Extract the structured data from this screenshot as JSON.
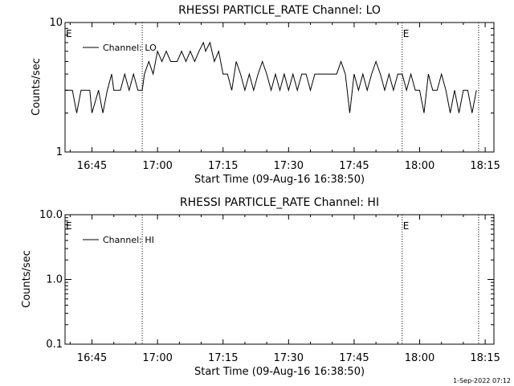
{
  "chart_data": [
    {
      "type": "line",
      "title": "RHESSI PARTICLE_RATE Channel: LO",
      "xlabel": "Start Time (09-Aug-16 16:38:50)",
      "ylabel": "Counts/sec",
      "yscale": "log",
      "ylim": [
        1,
        10
      ],
      "ytick_labels": [
        "1",
        "10"
      ],
      "xlim": [
        "16:38:50",
        "18:17:00"
      ],
      "x_tick_labels": [
        "16:45",
        "17:00",
        "17:15",
        "17:30",
        "17:45",
        "18:00",
        "18:15"
      ],
      "grid": false,
      "legend_position": "top-left",
      "eclipse_markers": [
        "16:38:50",
        "17:56:00"
      ],
      "eclipse_label": "E",
      "vertical_markers": [
        "16:56:30",
        "17:56:00",
        "18:13:30"
      ],
      "series": [
        {
          "name": "Channel: LO",
          "x": [
            "16:38:50",
            "16:40:30",
            "16:41:30",
            "16:42:30",
            "16:43:30",
            "16:44:30",
            "16:45:00",
            "16:46:30",
            "16:47:30",
            "16:48:30",
            "16:49:30",
            "16:50:00",
            "16:51:30",
            "16:52:30",
            "16:53:30",
            "16:54:30",
            "16:55:30",
            "16:56:30",
            "16:57:00",
            "16:58:00",
            "16:59:00",
            "17:00:00",
            "17:01:00",
            "17:02:00",
            "17:03:00",
            "17:04:30",
            "17:05:30",
            "17:06:30",
            "17:07:30",
            "17:08:30",
            "17:09:30",
            "17:10:30",
            "17:11:00",
            "17:12:00",
            "17:13:00",
            "17:14:00",
            "17:15:00",
            "17:16:00",
            "17:17:00",
            "17:18:00",
            "17:19:00",
            "17:20:00",
            "17:21:00",
            "17:22:00",
            "17:23:00",
            "17:24:00",
            "17:25:00",
            "17:26:00",
            "17:27:00",
            "17:28:00",
            "17:29:00",
            "17:30:00",
            "17:31:00",
            "17:32:00",
            "17:33:00",
            "17:34:00",
            "17:35:00",
            "17:36:00",
            "17:37:00",
            "17:38:00",
            "17:39:00",
            "17:40:00",
            "17:41:00",
            "17:42:00",
            "17:43:00",
            "17:44:00",
            "17:45:00",
            "17:46:00",
            "17:47:00",
            "17:48:00",
            "17:49:00",
            "17:50:00",
            "17:51:00",
            "17:52:00",
            "17:53:00",
            "17:54:00",
            "17:55:00",
            "17:56:00",
            "17:57:00",
            "17:58:00",
            "17:59:00",
            "18:00:00",
            "18:01:00",
            "18:02:00",
            "18:03:00",
            "18:04:00",
            "18:05:00",
            "18:06:00",
            "18:07:00",
            "18:08:00",
            "18:09:00",
            "18:10:00",
            "18:11:00",
            "18:12:00",
            "18:13:00"
          ],
          "values": [
            3,
            3,
            2,
            3,
            3,
            3,
            2,
            3,
            2,
            3,
            4,
            3,
            3,
            4,
            3,
            4,
            3,
            3,
            4,
            5,
            4,
            6,
            5,
            6,
            5,
            5,
            6,
            5,
            6,
            5,
            6,
            7,
            6,
            7,
            5,
            6,
            4,
            4,
            3,
            5,
            4,
            3,
            4,
            3,
            4,
            5,
            4,
            3,
            4,
            3,
            4,
            3,
            4,
            3,
            4,
            4,
            3,
            4,
            4,
            4,
            4,
            4,
            4,
            5,
            4,
            2,
            4,
            3,
            4,
            3,
            4,
            5,
            4,
            3,
            4,
            3,
            4,
            4,
            3,
            4,
            3,
            3,
            2,
            4,
            3,
            3,
            4,
            3,
            2,
            3,
            2,
            3,
            3,
            2,
            3
          ]
        }
      ]
    },
    {
      "type": "line",
      "title": "RHESSI PARTICLE_RATE Channel: HI",
      "xlabel": "Start Time (09-Aug-16 16:38:50)",
      "ylabel": "Counts/sec",
      "yscale": "log",
      "ylim": [
        0.1,
        10
      ],
      "ytick_labels": [
        "0.1",
        "1.0",
        "10.0"
      ],
      "xlim": [
        "16:38:50",
        "18:17:00"
      ],
      "x_tick_labels": [
        "16:45",
        "17:00",
        "17:15",
        "17:30",
        "17:45",
        "18:00",
        "18:15"
      ],
      "grid": false,
      "legend_position": "top-left",
      "eclipse_markers": [
        "16:38:50",
        "17:56:00"
      ],
      "eclipse_label": "E",
      "vertical_markers": [
        "16:56:30",
        "17:56:00",
        "18:13:30"
      ],
      "series": [
        {
          "name": "Channel: HI",
          "x": [],
          "values": []
        }
      ]
    }
  ],
  "footer": {
    "timestamp": "1-Sep-2022 07:12"
  }
}
